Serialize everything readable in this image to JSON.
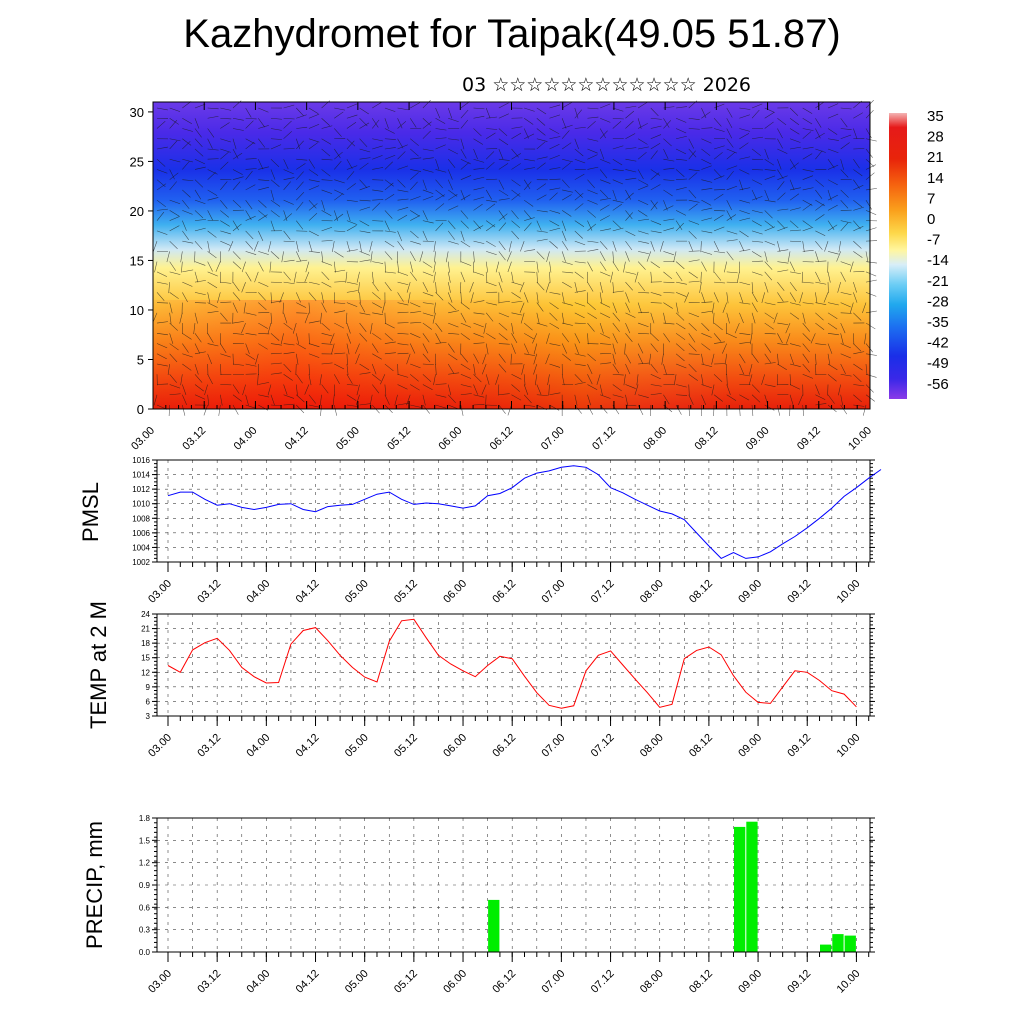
{
  "header": {
    "title": "Kazhydromet for Taipak(49.05 51.87)",
    "subtitle": "03 ☆☆☆☆☆☆☆☆☆☆☆☆ 2026"
  },
  "time_ticks": [
    "03.00",
    "03.12",
    "04.00",
    "04.12",
    "05.00",
    "05.12",
    "06.00",
    "06.12",
    "07.00",
    "07.12",
    "08.00",
    "08.12",
    "09.00",
    "09.12",
    "10.00"
  ],
  "chart_data": [
    {
      "type": "heatmap",
      "name": "vertical-cross-section",
      "x_categories": [
        "03.00",
        "03.12",
        "04.00",
        "04.12",
        "05.00",
        "05.12",
        "06.00",
        "06.12",
        "07.00",
        "07.12",
        "08.00",
        "08.12",
        "09.00",
        "09.12",
        "10.00"
      ],
      "yticks": [
        0,
        5,
        10,
        15,
        20,
        25,
        30
      ],
      "ylim": [
        0,
        31
      ],
      "colorbar_labels": [
        "35",
        "28",
        "21",
        "14",
        "7",
        "0",
        "-7",
        "-14",
        "-21",
        "-28",
        "-35",
        "-42",
        "-49",
        "-56"
      ],
      "colorbar_range": [
        -60,
        38
      ],
      "overlay": "wind barbs"
    },
    {
      "type": "line",
      "name": "pmsl",
      "ylabel": "PMSL",
      "ylim": [
        1002,
        1016
      ],
      "yticks": [
        "1016",
        "1014",
        "1012",
        "1010",
        "1008",
        "1006",
        "1004",
        "1002"
      ],
      "color": "#0000ff",
      "values": [
        1011.1,
        1011.6,
        1011.6,
        1010.6,
        1009.8,
        1010.0,
        1009.5,
        1009.2,
        1009.5,
        1009.9,
        1010.0,
        1009.2,
        1008.9,
        1009.6,
        1009.8,
        1009.9,
        1010.6,
        1011.3,
        1011.6,
        1010.6,
        1009.9,
        1010.1,
        1010.0,
        1009.7,
        1009.4,
        1009.7,
        1011.1,
        1011.4,
        1012.2,
        1013.5,
        1014.2,
        1014.5,
        1015.0,
        1015.2,
        1015.0,
        1014.0,
        1012.2,
        1011.5,
        1010.6,
        1009.8,
        1009.0,
        1008.6,
        1007.8,
        1006.0,
        1004.2,
        1002.5,
        1003.3,
        1002.5,
        1002.7,
        1003.4,
        1004.5,
        1005.5,
        1006.7,
        1008.0,
        1009.4,
        1011.0,
        1012.2,
        1013.5,
        1014.7
      ]
    },
    {
      "type": "line",
      "name": "temperature",
      "ylabel": "TEMP at 2 M",
      "ylim": [
        3,
        24
      ],
      "yticks": [
        "24",
        "21",
        "18",
        "15",
        "12",
        "9",
        "6",
        "3"
      ],
      "color": "#ff0000",
      "values": [
        13.4,
        12.0,
        16.6,
        18.1,
        19.0,
        16.5,
        13.0,
        11.1,
        9.8,
        9.9,
        17.8,
        20.6,
        21.2,
        18.5,
        15.5,
        13.0,
        11.0,
        10.0,
        18.4,
        22.6,
        22.9,
        19.1,
        15.5,
        13.7,
        12.3,
        11.1,
        13.4,
        15.3,
        14.8,
        11.2,
        7.8,
        5.2,
        4.6,
        5.1,
        12.3,
        15.5,
        16.4,
        13.5,
        10.6,
        7.8,
        4.8,
        5.4,
        14.8,
        16.5,
        17.2,
        15.6,
        11.3,
        7.9,
        5.8,
        5.6,
        9.0,
        12.3,
        12.0,
        10.3,
        8.2,
        7.5,
        4.9
      ]
    },
    {
      "type": "bar",
      "name": "precipitation",
      "ylabel": "PRECIP, mm",
      "ylim": [
        0,
        1.8
      ],
      "yticks": [
        "1.8",
        "1.5",
        "1.2",
        "0.9",
        "0.6",
        "0.3",
        "0.0"
      ],
      "color": "#00ee00",
      "bars": [
        {
          "x": 6.25,
          "value": 0.7
        },
        {
          "x": 8.75,
          "value": 1.68
        },
        {
          "x": 8.875,
          "value": 1.75
        },
        {
          "x": 9.625,
          "value": 0.1
        },
        {
          "x": 9.75,
          "value": 0.24
        },
        {
          "x": 9.875,
          "value": 0.22
        }
      ]
    }
  ]
}
